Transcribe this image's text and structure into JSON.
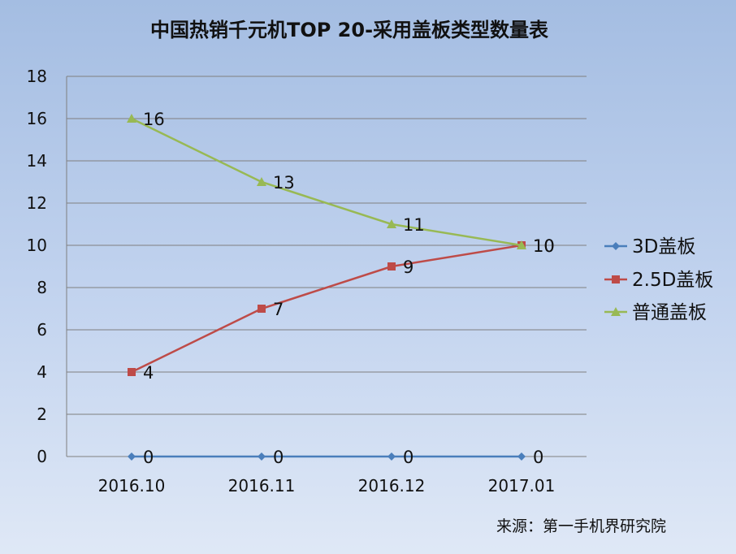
{
  "chart_data": {
    "type": "line",
    "title": "中国热销千元机TOP 20-采用盖板类型数量表",
    "categories": [
      "2016.10",
      "2016.11",
      "2016.12",
      "2017.01"
    ],
    "series": [
      {
        "name": "3D盖板",
        "values": [
          0,
          0,
          0,
          0
        ],
        "color": "#4a7ebb",
        "marker": "diamond"
      },
      {
        "name": "2.5D盖板",
        "values": [
          4,
          7,
          9,
          10
        ],
        "color": "#be4b48",
        "marker": "square"
      },
      {
        "name": "普通盖板",
        "values": [
          16,
          13,
          11,
          10
        ],
        "color": "#98b954",
        "marker": "triangle"
      }
    ],
    "data_labels": [
      [
        "0",
        "0",
        "0",
        "0"
      ],
      [
        "4",
        "7",
        "9",
        "10"
      ],
      [
        "16",
        "13",
        "11",
        "10"
      ]
    ],
    "ylim": [
      0,
      18
    ],
    "yticks": [
      0,
      2,
      4,
      6,
      8,
      10,
      12,
      14,
      16,
      18
    ],
    "grid": true,
    "legend_position": "right",
    "source": "来源：第一手机界研究院"
  }
}
